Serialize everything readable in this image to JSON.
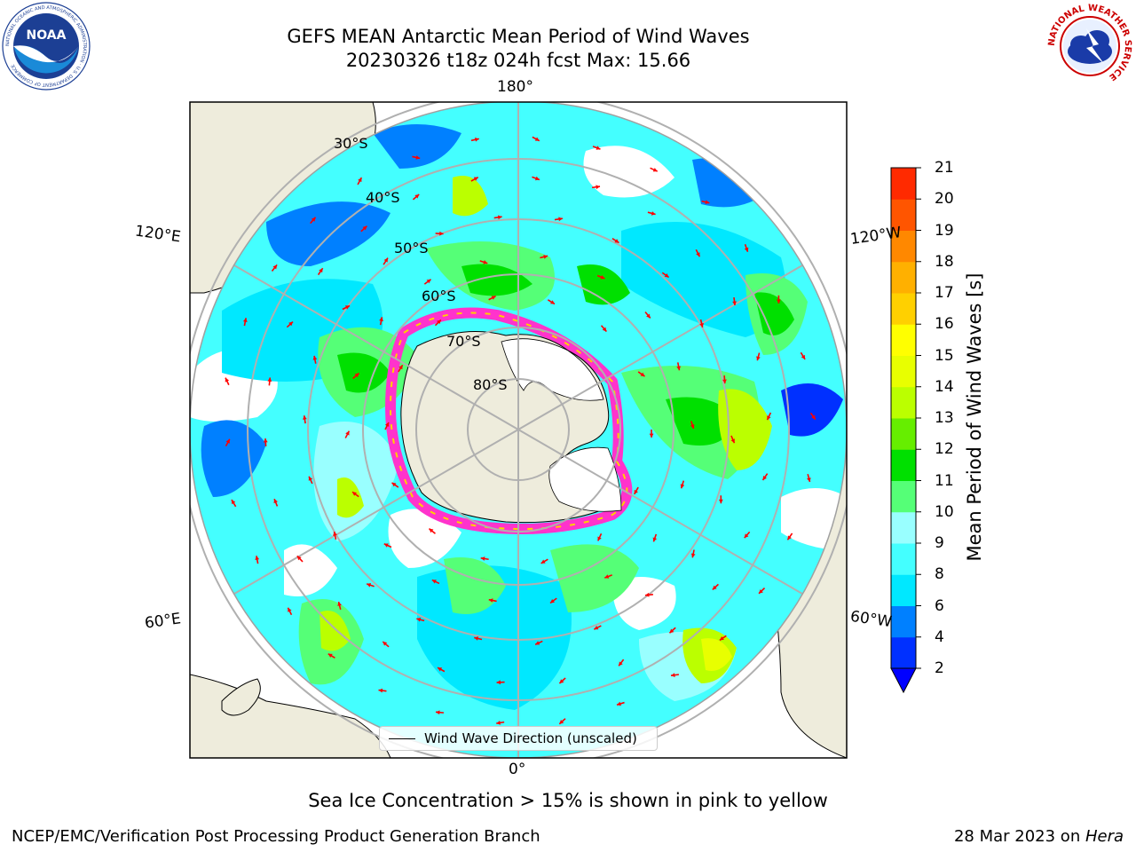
{
  "header": {
    "title_line1": "GEFS MEAN Antarctic Mean Period of Wind Waves",
    "title_line2": "20230326 t18z 024h fcst   Max: 15.66"
  },
  "logos": {
    "noaa_text": "NOAA",
    "noaa_ring": "NATIONAL OCEANIC AND ATMOSPHERIC ADMINISTRATION · U.S. DEPARTMENT OF COMMERCE",
    "nws_ring": "NATIONAL WEATHER SERVICE"
  },
  "map": {
    "projection": "south-polar-stereographic",
    "longitude_labels": {
      "top": "180°",
      "bottom": "0°",
      "upper_left": "120°E",
      "upper_right": "120°W",
      "lower_left": "60°E",
      "lower_right": "60°W"
    },
    "latitude_labels": [
      "30°S",
      "40°S",
      "50°S",
      "60°S",
      "70°S",
      "80°S"
    ],
    "colors": {
      "land": "#eeecdc",
      "sea_ice": "#ff33cc",
      "no_data": "#ffffff",
      "arrows": "#ff0000",
      "grid": "#b0b0b0"
    }
  },
  "colorbar": {
    "label": "Mean Period of Wind Waves [s]",
    "ticks": [
      "2",
      "4",
      "6",
      "8",
      "9",
      "10",
      "11",
      "12",
      "13",
      "14",
      "15",
      "16",
      "17",
      "18",
      "19",
      "20",
      "21"
    ],
    "colors": [
      "#0030ff",
      "#0080ff",
      "#00e8ff",
      "#44ffff",
      "#99ffff",
      "#55ff77",
      "#00e000",
      "#66ee00",
      "#bbff00",
      "#e8ff00",
      "#ffff00",
      "#ffd000",
      "#ffb000",
      "#ff8800",
      "#ff5500",
      "#ff2a00"
    ],
    "under_color": "#0000ff"
  },
  "legend": {
    "label": "Wind Wave Direction (unscaled)"
  },
  "notes": {
    "sea_ice": "Sea Ice Concentration > 15% is shown in pink to yellow"
  },
  "footer": {
    "left": "NCEP/EMC/Verification Post Processing Product Generation Branch",
    "right_prefix": "28 Mar 2023 on ",
    "right_machine": "Hera"
  }
}
